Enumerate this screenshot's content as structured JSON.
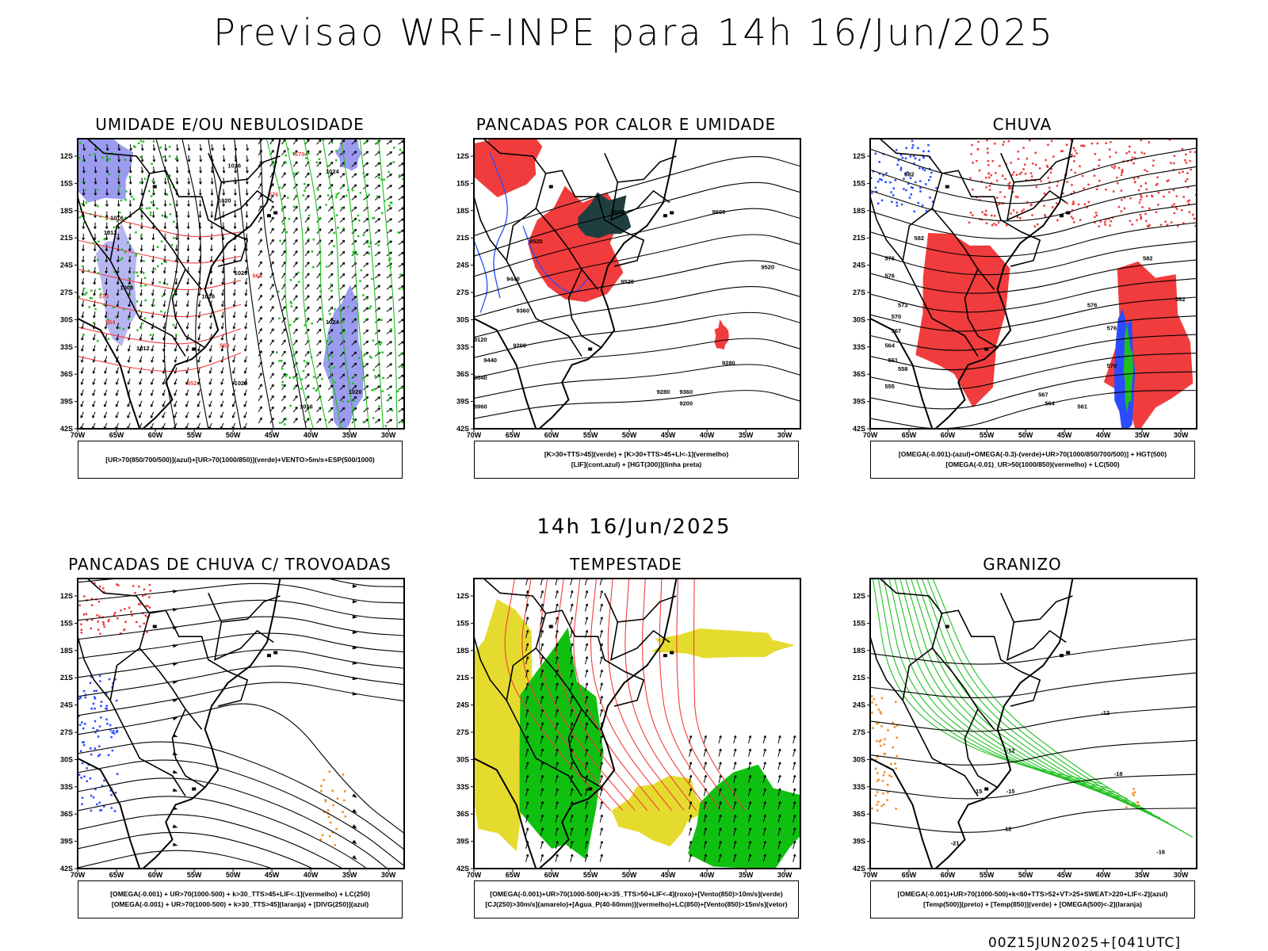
{
  "title": "Previsao WRF-INPE  para 14h 16/Jun/2025",
  "subtitle": "14h 16/Jun/2025",
  "footer": "00Z15JUN2025+[041UTC]",
  "axes": {
    "lat_labels": [
      "12S",
      "15S",
      "18S",
      "21S",
      "24S",
      "27S",
      "30S",
      "33S",
      "36S",
      "39S",
      "42S"
    ],
    "lon_labels": [
      "70W",
      "65W",
      "60W",
      "55W",
      "50W",
      "45W",
      "40W",
      "35W",
      "30W"
    ]
  },
  "colors": {
    "blue_fill": "#9b9bef",
    "green": "#1fbf1f",
    "red": "#f03c3c",
    "blue_line": "#2a4bff",
    "dark_teal": "#1f3f3f",
    "yellow": "#e5db2e",
    "orange": "#f08a24",
    "bright_green": "#10c010"
  },
  "panels": [
    {
      "title": "UMIDADE E/OU NEBULOSIDADE",
      "legend": [
        "[UR>70(850/700/500)](azul)+[UR>70(1000/850)](verde)+VENTO>5m/s+ESP(500/1000)"
      ],
      "contour_labels": [
        "1016",
        "1020",
        "1016",
        "1012",
        "1008",
        "1020",
        "1016",
        "1024",
        "1012",
        "1020",
        "1016",
        "1020",
        "1024"
      ],
      "red_labels": [
        "570",
        "576",
        "564",
        "558",
        "552",
        "570",
        "564"
      ]
    },
    {
      "title": "PANCADAS POR CALOR E UMIDADE",
      "legend": [
        "[K>30+TTS>45](verde) + [K>30+TTS>45+LI<-1](vermelho)",
        "[LIF](cont.azul) + [HGT(300)](linha preta)"
      ],
      "contour_labels": [
        "9600",
        "9600",
        "9520",
        "9440",
        "9520",
        "9520",
        "9360",
        "9280",
        "9200",
        "9440",
        "9360",
        "9120",
        "9040",
        "9280",
        "9200",
        "8960"
      ]
    },
    {
      "title": "CHUVA",
      "legend": [
        "[OMEGA(-0.001)-(azul)+OMEGA(-0.3)-(verde)+UR>70(1000/850/700/500)] + HGT(500)",
        "[OMEGA(-0.01)_UR>50(1000/850)(vermelho) + LC(500)"
      ],
      "contour_labels": [
        "582",
        "582",
        "576",
        "576",
        "573",
        "570",
        "567",
        "564",
        "561",
        "558",
        "555",
        "582",
        "582",
        "576",
        "576",
        "570",
        "567",
        "564",
        "561"
      ]
    },
    {
      "title": "PANCADAS DE CHUVA C/ TROVOADAS",
      "legend": [
        "[OMEGA(-0.001) + UR>70(1000-500) + k>30_TTS>45+LIF<-1](vermelho) + LC(250)",
        "[OMEGA(-0.001) + UR>70(1000-500) + k>30_TTS>45](laranja) + [DIVG(250)](azul)"
      ]
    },
    {
      "title": "TEMPESTADE",
      "legend": [
        "[OMEGA(-0.001)+UR>70(1000-500)+k>35_TTS>50+LIF<-4](roxo)+[Vento(850)>10m/s](verde)",
        "[CJ(250)>30m/s](amarelo)+[Agua_P(40-60mm)](vermelho)+LC(850)+[Vento(850)>15m/s](vetor)"
      ]
    },
    {
      "title": "GRANIZO",
      "legend": [
        "[OMEGA(-0.001)+UR>70(1000-500)+k<60+TTS>52+VT>25+SWEAT>220+LIF<-2](azul)",
        "[Temp(500)](preto) + [Temp(850)](verde) + [OMEGA(500)<-2](laranja)"
      ],
      "contour_labels": [
        "-12",
        "-12",
        "-15",
        "-15",
        "-18",
        "-21",
        "-12",
        "-16"
      ]
    }
  ],
  "chart_data": {
    "type": "map-panels",
    "title": "Previsao WRF-INPE  para 14h 16/Jun/2025",
    "valid_time": "14h 16/Jun/2025",
    "run": "00Z15JUN2025+[041UTC]",
    "lat_range": [
      "12S",
      "42S"
    ],
    "lon_range": [
      "70W",
      "30W"
    ],
    "panels": [
      "UMIDADE E/OU NEBULOSIDADE",
      "PANCADAS POR CALOR E UMIDADE",
      "CHUVA",
      "PANCADAS DE CHUVA C/ TROVOADAS",
      "TEMPESTADE",
      "GRANIZO"
    ]
  }
}
